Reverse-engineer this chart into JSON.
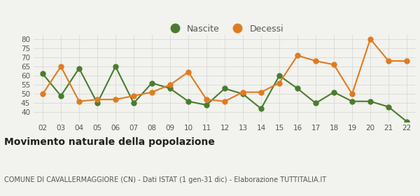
{
  "years": [
    "02",
    "03",
    "04",
    "05",
    "06",
    "07",
    "08",
    "09",
    "10",
    "11",
    "12",
    "13",
    "14",
    "15",
    "16",
    "17",
    "18",
    "19",
    "20",
    "21",
    "22"
  ],
  "nascite": [
    61,
    49,
    64,
    45,
    65,
    45,
    56,
    53,
    46,
    44,
    53,
    50,
    42,
    60,
    53,
    45,
    51,
    46,
    46,
    43,
    35
  ],
  "decessi": [
    50,
    65,
    46,
    47,
    47,
    49,
    51,
    55,
    62,
    47,
    46,
    51,
    51,
    56,
    71,
    68,
    66,
    50,
    80,
    68,
    68
  ],
  "nascite_color": "#4a7c2f",
  "decessi_color": "#e07b20",
  "bg_color": "#f2f2ee",
  "grid_color": "#d8d8d8",
  "ylim": [
    35,
    82
  ],
  "yticks": [
    40,
    45,
    50,
    55,
    60,
    65,
    70,
    75,
    80
  ],
  "yticklabels": [
    "40",
    "45",
    "50",
    "55",
    "60",
    "65",
    "70",
    "75",
    "80"
  ],
  "title": "Movimento naturale della popolazione",
  "subtitle": "COMUNE DI CAVALLERMAGGIORE (CN) - Dati ISTAT (1 gen-31 dic) - Elaborazione TUTTITALIA.IT",
  "title_fontsize": 10,
  "subtitle_fontsize": 7,
  "legend_label_nascite": "Nascite",
  "legend_label_decessi": "Decessi",
  "marker_size": 5,
  "linewidth": 1.5
}
